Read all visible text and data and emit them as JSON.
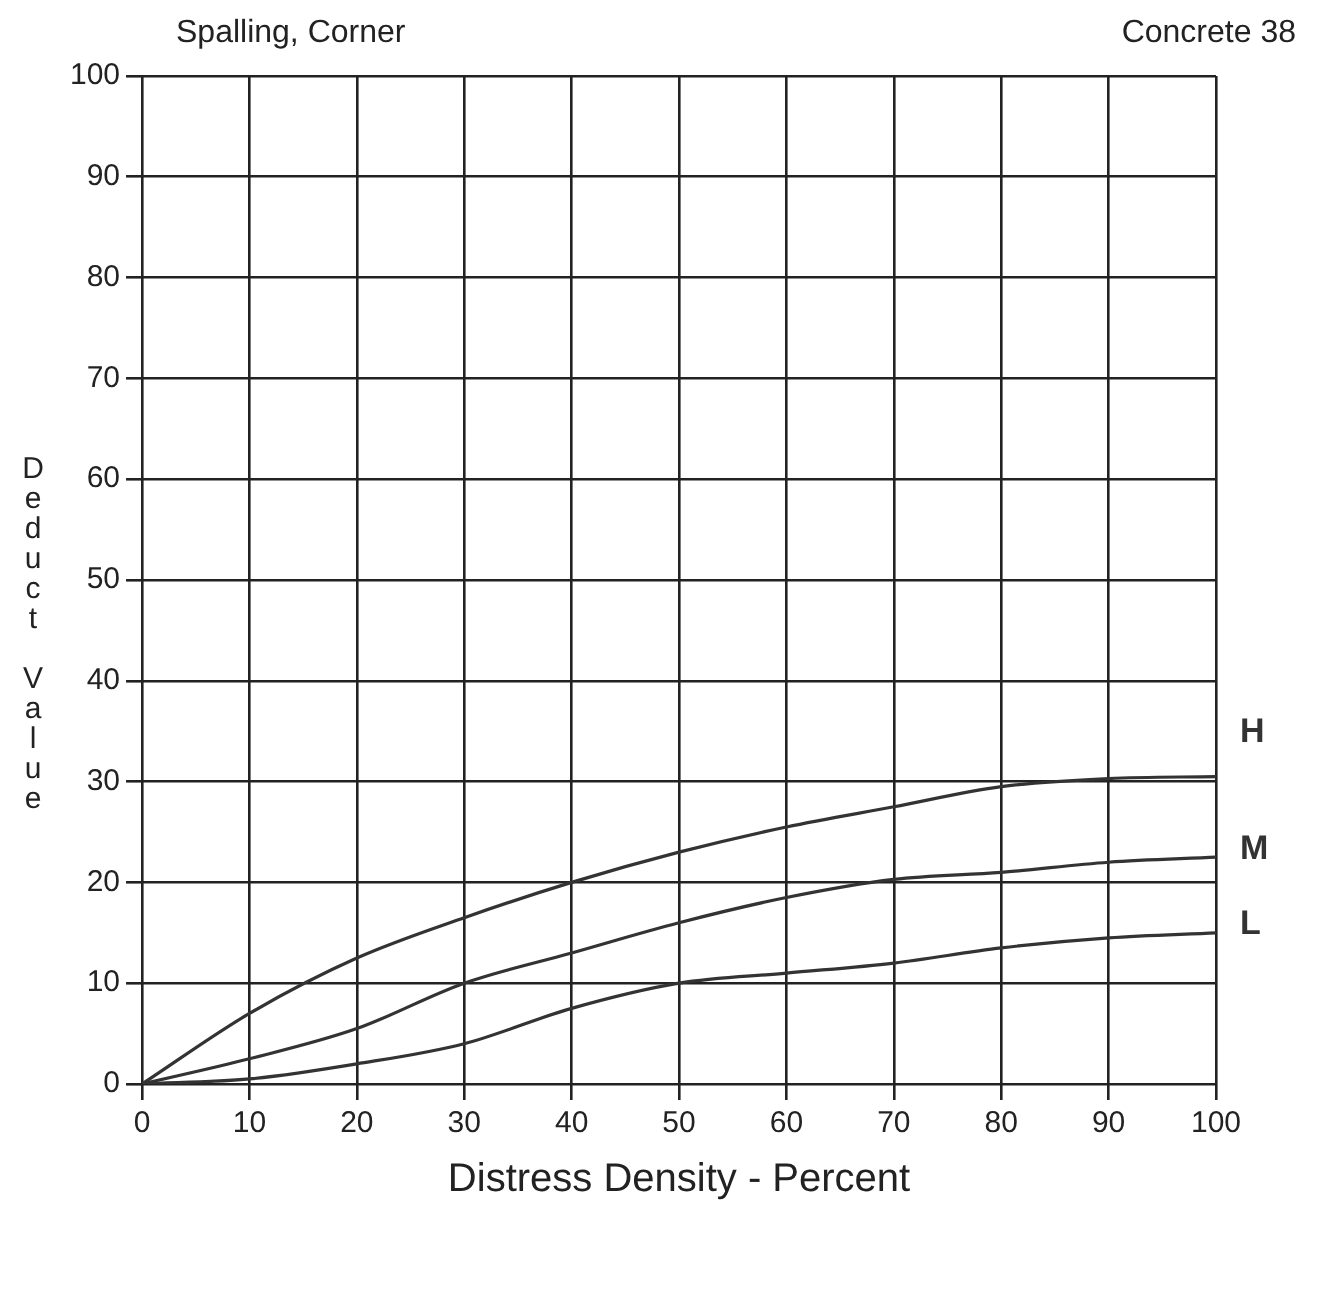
{
  "chart_data": {
    "type": "line",
    "title": "Spalling, Corner",
    "subtitle": "Concrete 38",
    "xlabel": "Distress Density - Percent",
    "ylabel": "Deduct Value",
    "x": [
      0,
      10,
      20,
      30,
      40,
      50,
      60,
      70,
      80,
      90,
      100
    ],
    "series": [
      {
        "name": "H",
        "color": "#333333",
        "values": [
          0,
          7,
          12.5,
          16.5,
          20,
          23,
          25.5,
          27.5,
          29.5,
          30.3,
          30.5
        ]
      },
      {
        "name": "M",
        "color": "#333333",
        "values": [
          0,
          2.5,
          5.5,
          10,
          13,
          16,
          18.5,
          20.3,
          21,
          22,
          22.5
        ]
      },
      {
        "name": "L",
        "color": "#333333",
        "values": [
          0,
          0.5,
          2,
          4,
          7.5,
          10,
          11,
          12,
          13.5,
          14.5,
          15
        ]
      }
    ],
    "xlim": [
      0,
      100
    ],
    "xticks": [
      0,
      10,
      20,
      30,
      40,
      50,
      60,
      70,
      80,
      90,
      100
    ],
    "ylim": [
      0,
      100
    ],
    "yticks": [
      0,
      10,
      20,
      30,
      40,
      50,
      60,
      70,
      80,
      90,
      100
    ],
    "grid": true,
    "legend": false,
    "marker": "none",
    "line_style": "solid"
  }
}
